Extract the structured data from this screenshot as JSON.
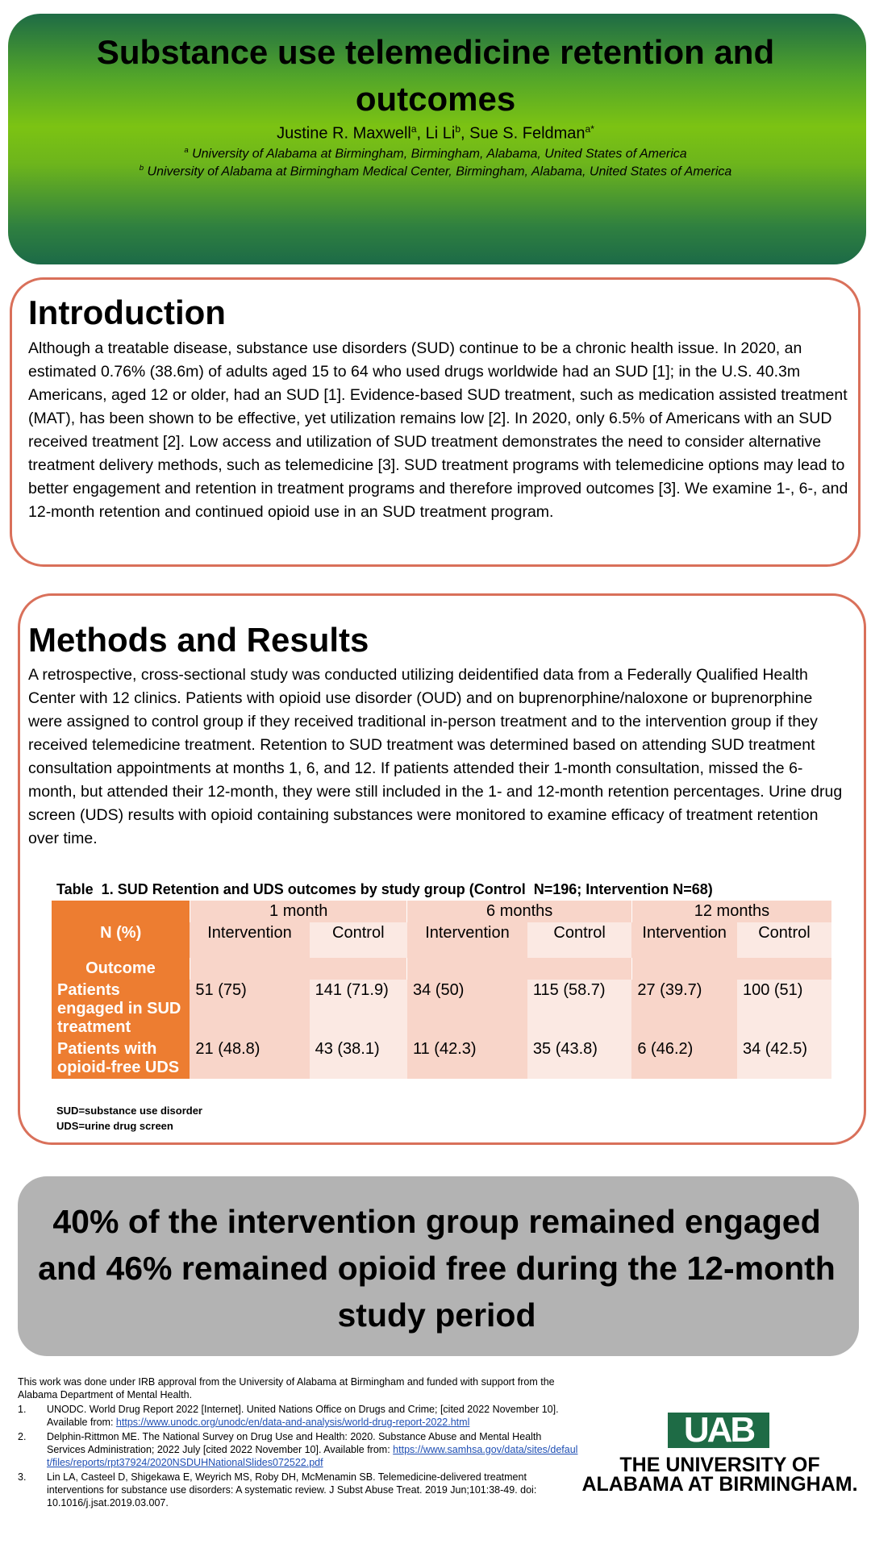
{
  "header": {
    "title": "Substance use telemedicine retention and outcomes",
    "authors": [
      {
        "name": "Justine R. Maxwell",
        "sup": "a"
      },
      {
        "name": ", Li Li",
        "sup": "b"
      },
      {
        "name": ", Sue S. Feldman",
        "sup": "a*"
      }
    ],
    "affiliations": [
      {
        "sup": "a",
        "text": " University of Alabama at Birmingham, Birmingham, Alabama, United States of America"
      },
      {
        "sup": "b",
        "text": " University of Alabama at Birmingham Medical Center, Birmingham, Alabama, United States of America"
      }
    ]
  },
  "introduction": {
    "heading": "Introduction",
    "text": "Although a treatable disease, substance use disorders (SUD) continue to be a chronic health issue. In 2020, an estimated 0.76% (38.6m) of adults aged 15 to 64 who used drugs worldwide had an SUD [1]; in the U.S. 40.3m Americans, aged 12 or older, had an SUD [1]. Evidence-based SUD treatment, such as medication assisted treatment (MAT), has been shown to be effective, yet utilization remains low [2]. In 2020, only 6.5% of Americans with an SUD received treatment [2]. Low access and utilization of SUD treatment demonstrates the need to consider alternative treatment delivery methods, such as telemedicine [3]. SUD treatment programs with telemedicine options may lead to better engagement and retention in treatment programs and therefore improved outcomes [3]. We examine 1-, 6-, and 12-month retention and continued opioid use in an SUD treatment program."
  },
  "methods": {
    "heading": "Methods and Results",
    "text": "A retrospective, cross-sectional study was conducted utilizing deidentified data from a Federally Qualified Health Center with 12 clinics. Patients with opioid use disorder (OUD) and on buprenorphine/naloxone or buprenorphine were assigned to control group if they received traditional in-person treatment and to the intervention group if they received telemedicine treatment. Retention to SUD treatment was determined based on attending SUD treatment consultation appointments at months 1, 6, and 12. If patients attended their 1-month consultation, missed the 6-month, but attended their 12-month, they were still included in the 1- and 12-month retention percentages. Urine drug screen (UDS) results with opioid containing substances were monitored to examine efficacy of treatment retention over time."
  },
  "table": {
    "caption": "Table  1. SUD Retention and UDS outcomes by study group (Control  N=196; Intervention N=68)",
    "groups": [
      "1 month",
      "6 months",
      "12 months"
    ],
    "corner": "N (%)",
    "columns": [
      "Intervention",
      "Control",
      "Intervention",
      "Control",
      "Intervention",
      "Control"
    ],
    "outcome": "Outcome",
    "rows": [
      {
        "label": "Patients engaged in SUD treatment",
        "cells": [
          "51 (75)",
          "141 (71.9)",
          "34 (50)",
          "115 (58.7)",
          "27 (39.7)",
          "100 (51)"
        ]
      },
      {
        "label": "Patients with opioid-free UDS",
        "cells": [
          "21 (48.8)",
          "43 (38.1)",
          "11 (42.3)",
          "35 (43.8)",
          "6 (46.2)",
          "34 (42.5)"
        ]
      }
    ],
    "footnotes": [
      "SUD=substance use disorder",
      "UDS=urine drug screen"
    ]
  },
  "conclusion": "40% of the intervention group remained engaged and 46% remained opioid free during the 12-month study period",
  "acknowledgement": "This work was done under IRB approval from the University of Alabama at Birmingham and funded with support from the Alabama Department of Mental Health.",
  "references": [
    {
      "num": "1.",
      "text": "UNODC. World Drug Report 2022  [Internet]. United Nations Office on Drugs and Crime; [cited 2022 November 10]. Available from: ",
      "link": "https://www.unodc.org/unodc/en/data-and-analysis/world-drug-report-2022.html"
    },
    {
      "num": "2.",
      "text": "Delphin-Rittmon ME. The National Survey on Drug Use and Health: 2020.  Substance Abuse and Mental Health Services Administration; 2022 July [cited 2022 November 10]. Available from: ",
      "link": "https://www.samhsa.gov/data/sites/default/files/reports/rpt37924/2020NSDUHNationalSlides072522.pdf"
    },
    {
      "num": "3.",
      "text": "Lin LA, Casteel D, Shigekawa E, Weyrich MS, Roby DH, McMenamin SB. Telemedicine-delivered treatment interventions for substance use disorders: A systematic review. J Subst Abuse Treat. 2019 Jun;101:38-49. doi: 10.1016/j.jsat.2019.03.007."
    }
  ],
  "logo": {
    "mark": "UAB",
    "line1": "THE UNIVERSITY OF",
    "line2": "ALABAMA AT BIRMINGHAM."
  }
}
